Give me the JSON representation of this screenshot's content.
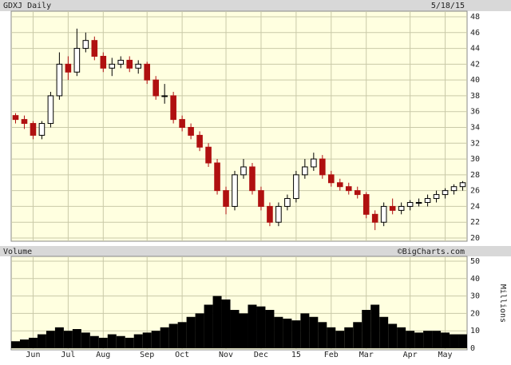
{
  "chart_data": {
    "type": "candlestick",
    "title": "GDXJ Daily",
    "date": "5/18/15",
    "volume_title": "Volume",
    "source": "©BigCharts.com",
    "volume_unit": "Millions",
    "categories": [
      null,
      null,
      "Jun",
      null,
      null,
      null,
      "Jul",
      null,
      null,
      null,
      "Aug",
      null,
      null,
      null,
      null,
      "Sep",
      null,
      null,
      null,
      "Oct",
      null,
      null,
      null,
      null,
      "Nov",
      null,
      null,
      null,
      "Dec",
      null,
      null,
      null,
      "15",
      null,
      null,
      null,
      "Feb",
      null,
      null,
      null,
      "Mar",
      null,
      null,
      null,
      null,
      "Apr",
      null,
      null,
      null,
      "May",
      null,
      null
    ],
    "open": [
      35.5,
      35,
      34.5,
      33,
      34.5,
      38,
      42,
      41,
      44,
      45,
      43,
      41.5,
      42,
      42.5,
      41.5,
      42,
      40,
      38,
      38,
      35,
      34,
      33,
      31.5,
      29.5,
      26,
      24,
      28,
      29,
      26,
      24,
      22,
      24,
      25,
      28,
      29,
      30,
      28,
      27,
      26.5,
      26,
      25.5,
      23,
      22,
      24,
      23.5,
      24,
      24.5,
      24.5,
      25,
      25.5,
      26,
      26.5
    ],
    "high": [
      35.8,
      35.5,
      34.8,
      34.8,
      38.5,
      43.5,
      43,
      46.5,
      46,
      45.5,
      43.5,
      42.8,
      43,
      43,
      42.5,
      42.3,
      40.5,
      39.5,
      38.5,
      35.5,
      34.5,
      33.5,
      32,
      30,
      26.5,
      28.5,
      30,
      29.5,
      26.5,
      24.5,
      24.5,
      25.5,
      28.5,
      30,
      30.8,
      30.5,
      28.5,
      27.5,
      27,
      26.5,
      25.8,
      23.5,
      24.5,
      25,
      24.5,
      24.8,
      25,
      25.5,
      26,
      26.3,
      26.8,
      27.2
    ],
    "low": [
      34.5,
      33.8,
      32.5,
      32.5,
      34,
      37.5,
      40,
      40.5,
      43.5,
      42.5,
      41,
      40.5,
      41.5,
      41,
      40.8,
      39.5,
      37.5,
      37,
      34.5,
      33.5,
      32.5,
      31,
      29,
      25.5,
      23,
      23.5,
      27.5,
      25.5,
      23.5,
      21.5,
      21.5,
      23.5,
      24.5,
      27.5,
      28.5,
      27.5,
      26.5,
      26,
      25.5,
      25,
      22.5,
      21,
      21.5,
      23,
      23,
      23.5,
      24,
      24,
      24.5,
      25,
      25.5,
      26
    ],
    "close": [
      35,
      34.5,
      33,
      34.5,
      38,
      42,
      41,
      44,
      45,
      43,
      41.5,
      42,
      42.5,
      41.5,
      42,
      40,
      38,
      38,
      35,
      34,
      33,
      31.5,
      29.5,
      26,
      24,
      28,
      29,
      26,
      24,
      22,
      24,
      25,
      28,
      29,
      30,
      28,
      27,
      26.5,
      26,
      25.5,
      23,
      22,
      24,
      23.5,
      24,
      24.5,
      24.5,
      25,
      25.5,
      26,
      26.5,
      27
    ],
    "volume": [
      4,
      5,
      6,
      8,
      10,
      12,
      10,
      11,
      9,
      7,
      6,
      8,
      7,
      6,
      8,
      9,
      10,
      12,
      14,
      15,
      18,
      20,
      25,
      30,
      28,
      22,
      20,
      25,
      24,
      22,
      18,
      17,
      16,
      20,
      18,
      15,
      12,
      10,
      12,
      15,
      22,
      25,
      18,
      14,
      12,
      10,
      9,
      10,
      10,
      9,
      8,
      8
    ],
    "up_color": "#ffffff",
    "down_color": "#b01010",
    "volume_color": "#000000",
    "ylim": [
      20,
      48
    ],
    "yticks": [
      20,
      22,
      24,
      26,
      28,
      30,
      32,
      34,
      36,
      38,
      40,
      42,
      44,
      46,
      48
    ],
    "y2lim": [
      0,
      50
    ],
    "y2ticks": [
      0,
      10,
      20,
      30,
      40,
      50
    ],
    "grid": true
  }
}
